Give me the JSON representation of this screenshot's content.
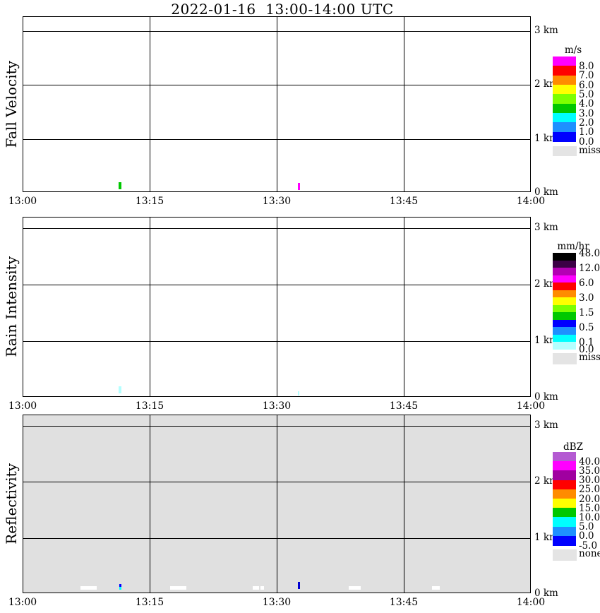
{
  "title": "2022-01-16  13:00-14:00 UTC",
  "chart_data": [
    {
      "type": "heatmap",
      "panel": "fall-velocity",
      "ylabel": "Fall Velocity",
      "units": "m/s",
      "x_ticks": [
        "13:00",
        "13:15",
        "13:30",
        "13:45",
        "14:00"
      ],
      "y_tick_labels": [
        "3 km",
        "2 km",
        "1 km",
        "0 km"
      ],
      "x_axis_minutes": [
        0,
        60
      ],
      "y_range_km": [
        0,
        3.26
      ],
      "background": "#ffffff",
      "legend": {
        "header": "m/s",
        "boxes": [
          "#ff00ff",
          "#ff0000",
          "#ff8c00",
          "#ffff00",
          "#7dff00",
          "#00c800",
          "#00ffff",
          "#1e90ff",
          "#0000ff"
        ],
        "boundary_labels": [
          {
            "text": "8.0",
            "b": 1
          },
          {
            "text": "7.0",
            "b": 2
          },
          {
            "text": "6.0",
            "b": 3
          },
          {
            "text": "5.0",
            "b": 4
          },
          {
            "text": "4.0",
            "b": 5
          },
          {
            "text": "3.0",
            "b": 6
          },
          {
            "text": "2.0",
            "b": 7
          },
          {
            "text": "1.0",
            "b": 8
          },
          {
            "text": "0.0",
            "b": 9
          }
        ],
        "missing": {
          "label": "miss",
          "color": "#e4e4e4"
        }
      },
      "marks": [
        {
          "t_min": [
            11.25,
            11.55
          ],
          "km": [
            0.04,
            0.17
          ],
          "color": "#00c800"
        },
        {
          "t_min": [
            32.4,
            32.65
          ],
          "km": [
            0.03,
            0.16
          ],
          "color": "#ff00ff"
        }
      ]
    },
    {
      "type": "heatmap",
      "panel": "rain-intensity",
      "ylabel": "Rain Intensity",
      "units": "mm/hr",
      "x_ticks": [
        "13:00",
        "13:15",
        "13:30",
        "13:45",
        "14:00"
      ],
      "y_tick_labels": [
        "3 km",
        "2 km",
        "1 km",
        "0 km"
      ],
      "x_axis_minutes": [
        0,
        60
      ],
      "y_range_km": [
        0,
        3.19
      ],
      "background": "#ffffff",
      "legend": {
        "header": "mm/hr",
        "boxes": [
          "#000000",
          "#3c0046",
          "#b400b4",
          "#ff00ff",
          "#ff0000",
          "#ff8c00",
          "#ffff00",
          "#7dff00",
          "#00c800",
          "#0000ff",
          "#1e90ff",
          "#00ffff",
          "#b4ffff"
        ],
        "boundary_labels": [
          {
            "text": "48.0",
            "b": 0
          },
          {
            "text": "12.0",
            "b": 2
          },
          {
            "text": "6.0",
            "b": 4
          },
          {
            "text": "3.0",
            "b": 6
          },
          {
            "text": "1.5",
            "b": 8
          },
          {
            "text": "0.5",
            "b": 10
          },
          {
            "text": "0.1",
            "b": 12
          },
          {
            "text": "0.0",
            "b": 13
          }
        ],
        "missing": {
          "label": "miss",
          "color": "#e4e4e4"
        }
      },
      "marks": [
        {
          "t_min": [
            11.25,
            11.55
          ],
          "km": [
            0.05,
            0.175
          ],
          "color": "#b4ffff"
        },
        {
          "t_min": [
            32.4,
            32.6
          ],
          "km": [
            0.01,
            0.09
          ],
          "color": "#b4ffff"
        }
      ]
    },
    {
      "type": "heatmap",
      "panel": "reflectivity",
      "ylabel": "Reflectivity",
      "units": "dBZ",
      "x_ticks": [
        "13:00",
        "13:15",
        "13:30",
        "13:45",
        "14:00"
      ],
      "y_tick_labels": [
        "3 km",
        "2 km",
        "1 km",
        "0 km"
      ],
      "x_axis_minutes": [
        0,
        60
      ],
      "y_range_km": [
        0,
        3.19
      ],
      "background": "#e0e0e0",
      "legend": {
        "header": "dBZ",
        "boxes": [
          "#b45ad2",
          "#ff00ff",
          "#a000a0",
          "#ff0000",
          "#ff8c00",
          "#ffff00",
          "#00c800",
          "#00ffff",
          "#1e90ff",
          "#0000ff"
        ],
        "boundary_labels": [
          {
            "text": "40.0",
            "b": 1
          },
          {
            "text": "35.0",
            "b": 2
          },
          {
            "text": "30.0",
            "b": 3
          },
          {
            "text": "25.0",
            "b": 4
          },
          {
            "text": "20.0",
            "b": 5
          },
          {
            "text": "15.0",
            "b": 6
          },
          {
            "text": "10.0",
            "b": 7
          },
          {
            "text": "5.0",
            "b": 8
          },
          {
            "text": "0.0",
            "b": 9
          },
          {
            "text": "-5.0",
            "b": 10
          }
        ],
        "missing": {
          "label": "none",
          "color": "#e4e4e4"
        }
      },
      "marks": [
        {
          "t_min": [
            6.75,
            8.65
          ],
          "km": [
            0.05,
            0.11
          ],
          "color": "#ffffff"
        },
        {
          "t_min": [
            17.3,
            19.25
          ],
          "km": [
            0.05,
            0.11
          ],
          "color": "#ffffff"
        },
        {
          "t_min": [
            27.1,
            27.8
          ],
          "km": [
            0.05,
            0.11
          ],
          "color": "#ffffff"
        },
        {
          "t_min": [
            28.0,
            28.45
          ],
          "km": [
            0.05,
            0.11
          ],
          "color": "#ffffff"
        },
        {
          "t_min": [
            38.4,
            39.8
          ],
          "km": [
            0.05,
            0.11
          ],
          "color": "#ffffff"
        },
        {
          "t_min": [
            48.25,
            49.2
          ],
          "km": [
            0.05,
            0.11
          ],
          "color": "#ffffff"
        },
        {
          "t_min": [
            11.3,
            11.55
          ],
          "km": [
            0.1,
            0.15
          ],
          "color": "#0000ff"
        },
        {
          "t_min": [
            11.3,
            11.55
          ],
          "km": [
            0.05,
            0.1
          ],
          "color": "#00ffff"
        },
        {
          "t_min": [
            32.4,
            32.65
          ],
          "km": [
            0.06,
            0.19
          ],
          "color": "#0000d2"
        }
      ]
    }
  ]
}
